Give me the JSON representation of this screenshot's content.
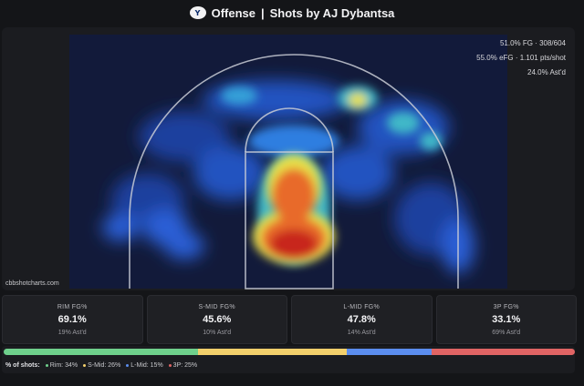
{
  "header": {
    "logo_text": "Y",
    "team": "Offense",
    "separator": "|",
    "title": "Shots by AJ Dybantsa"
  },
  "summary": {
    "fg": "51.0% FG · 308/604",
    "efg": "55.0% eFG · 1.101 pts/shot",
    "astd": "24.0% Ast'd"
  },
  "watermark": "cbbshotcharts.com",
  "zones": [
    {
      "label": "RIM FG%",
      "value": "69.1%",
      "sub": "19% Ast'd"
    },
    {
      "label": "S-MID FG%",
      "value": "45.6%",
      "sub": "10% Ast'd"
    },
    {
      "label": "L-MID FG%",
      "value": "47.8%",
      "sub": "14% Ast'd"
    },
    {
      "label": "3P FG%",
      "value": "33.1%",
      "sub": "69% Ast'd"
    }
  ],
  "shot_distribution": {
    "lead": "% of shots:",
    "items": [
      {
        "label": "Rim: 34%",
        "pct": 34,
        "color": "#6fd08c"
      },
      {
        "label": "S-Mid: 26%",
        "pct": 26,
        "color": "#f2cf6b"
      },
      {
        "label": "L-Mid: 15%",
        "pct": 15,
        "color": "#5b8def"
      },
      {
        "label": "3P: 25%",
        "pct": 25,
        "color": "#e06464"
      }
    ]
  },
  "chart_data": {
    "type": "heatmap",
    "title": "Shots by AJ Dybantsa",
    "hotspots": [
      {
        "zone": "rim",
        "intensity": 1.0
      },
      {
        "zone": "lane",
        "intensity": 0.8
      },
      {
        "zone": "top-of-arc",
        "intensity": 0.55
      },
      {
        "zone": "right-wing-three",
        "intensity": 0.45
      },
      {
        "zone": "left-wing-three",
        "intensity": 0.35
      },
      {
        "zone": "corner-three",
        "intensity": 0.25
      }
    ],
    "colorscale": [
      "#1a2a6b",
      "#2a5fd6",
      "#3fb8c8",
      "#e8e04a",
      "#e86a2a",
      "#c8281e"
    ]
  }
}
